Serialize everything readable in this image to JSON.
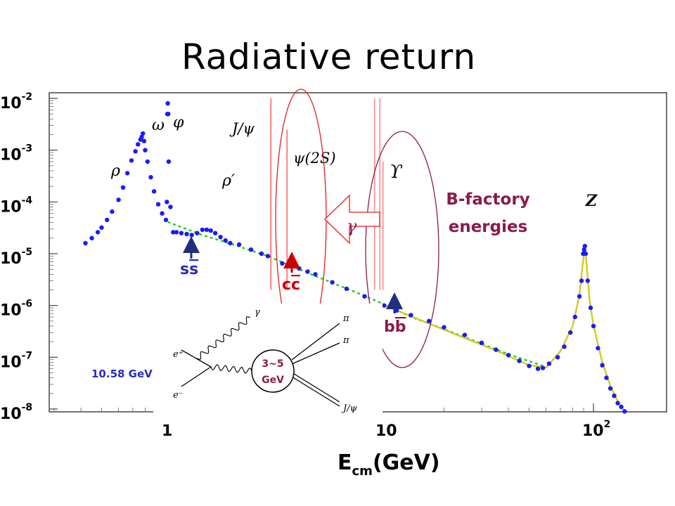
{
  "slide_title": "Radiative return",
  "x_axis_label": {
    "main": "E",
    "sub": "cm",
    "rest": "(GeV)"
  },
  "resonances": {
    "rho": "ρ",
    "omega": "ω",
    "phi": "φ",
    "rho_prime": "ρ′",
    "jpsi": "J/ψ",
    "psi2s": "ψ(2S)",
    "upsilon": "ϒ",
    "z": "Z"
  },
  "annotations": {
    "bfactory_line1": "B-factory",
    "bfactory_line2": "energies",
    "gamma_arrow": "γ",
    "ecm_box": "10.58 GeV",
    "hadron_mass_line1": "3~5",
    "hadron_mass_line2": "GeV"
  },
  "quark_labels": {
    "ss": {
      "first": "s",
      "second": "s"
    },
    "cc": {
      "first": "c",
      "second": "c"
    },
    "bb": {
      "first": "b",
      "second": "b"
    }
  },
  "feynman": {
    "e_plus": "e⁺",
    "e_minus": "e⁻",
    "gamma": "γ",
    "pi1": "π",
    "pi2": "π",
    "jpsi": "J/ψ"
  },
  "colors": {
    "data_blue": "#1a1aff",
    "fit_green": "#22cc22",
    "fit_yellow": "#d6c81e",
    "annot_purple": "#8b1a4a",
    "quark_blue": "#2a2ac0",
    "cc_red": "#cc0000",
    "ellipse_red": "#e02020",
    "ellipse_purple": "#8b1a4a",
    "arrow_navy": "#1f2f80"
  },
  "chart_data": {
    "type": "scatter",
    "x_scale": "log",
    "y_scale": "log",
    "xlim": [
      0.3,
      150
    ],
    "ylim": [
      1e-08,
      0.01
    ],
    "x_ticks": [
      {
        "value": 1,
        "base": "1",
        "exp": ""
      },
      {
        "value": 10,
        "base": "10",
        "exp": ""
      },
      {
        "value": 100,
        "base": "10",
        "exp": "2"
      }
    ],
    "y_ticks": [
      {
        "value": 0.01,
        "base": "10",
        "exp": "-2"
      },
      {
        "value": 0.001,
        "base": "10",
        "exp": "-3"
      },
      {
        "value": 0.0001,
        "base": "10",
        "exp": "-4"
      },
      {
        "value": 1e-05,
        "base": "10",
        "exp": "-5"
      },
      {
        "value": 1e-06,
        "base": "10",
        "exp": "-6"
      },
      {
        "value": 1e-07,
        "base": "10",
        "exp": "-7"
      },
      {
        "value": 1e-08,
        "base": "10",
        "exp": "-8"
      }
    ],
    "series": [
      {
        "color": "#1a1aff",
        "points": [
          [
            0.42,
            1.6e-05
          ],
          [
            0.45,
            2e-05
          ],
          [
            0.48,
            2.6e-05
          ],
          [
            0.5,
            3.2e-05
          ],
          [
            0.53,
            4.5e-05
          ],
          [
            0.56,
            6.5e-05
          ],
          [
            0.6,
            0.00011
          ],
          [
            0.63,
            0.00019
          ],
          [
            0.66,
            0.00036
          ],
          [
            0.69,
            0.00063
          ],
          [
            0.72,
            0.00095
          ],
          [
            0.74,
            0.0013
          ],
          [
            0.76,
            0.0016
          ],
          [
            0.77,
            0.0018
          ],
          [
            0.78,
            0.0021
          ],
          [
            0.79,
            0.0015
          ],
          [
            0.8,
            0.001
          ],
          [
            0.82,
            0.0006
          ],
          [
            0.85,
            0.0003
          ],
          [
            0.88,
            0.00016
          ],
          [
            0.92,
            9e-05
          ],
          [
            0.96,
            6e-05
          ],
          [
            1.0,
            4.5e-05
          ],
          [
            1.01,
            0.0001
          ],
          [
            1.015,
            0.005
          ],
          [
            1.02,
            0.008
          ],
          [
            1.025,
            0.005
          ],
          [
            1.03,
            0.0006
          ],
          [
            1.05,
            8e-05
          ],
          [
            1.08,
            2.6e-05
          ],
          [
            1.12,
            2.6e-05
          ],
          [
            1.18,
            2.5e-05
          ],
          [
            1.25,
            2.4e-05
          ],
          [
            1.32,
            2.3e-05
          ],
          [
            1.4,
            2.5e-05
          ],
          [
            1.48,
            2.9e-05
          ],
          [
            1.55,
            2.9e-05
          ],
          [
            1.62,
            2.8e-05
          ],
          [
            1.7,
            2.5e-05
          ],
          [
            1.8,
            2.1e-05
          ],
          [
            1.9,
            1.8e-05
          ],
          [
            2.0,
            1.6e-05
          ],
          [
            2.2,
            1.5e-05
          ],
          [
            2.5,
            1.2e-05
          ],
          [
            2.8,
            1e-05
          ],
          [
            3.0,
            9e-06
          ],
          [
            3.5,
            6.5e-06
          ],
          [
            3.9,
            6e-06
          ],
          [
            4.2,
            5.2e-06
          ],
          [
            4.6,
            4.5e-06
          ],
          [
            5.0,
            4e-06
          ],
          [
            6.0,
            2.8e-06
          ],
          [
            7.0,
            2.1e-06
          ],
          [
            8.5,
            1.5e-06
          ],
          [
            10.5,
            1e-06
          ],
          [
            12,
            8e-07
          ],
          [
            14,
            6.5e-07
          ],
          [
            17,
            5e-07
          ],
          [
            20,
            3.8e-07
          ],
          [
            25,
            2.7e-07
          ],
          [
            30,
            1.9e-07
          ],
          [
            35,
            1.4e-07
          ],
          [
            40,
            1.1e-07
          ],
          [
            45,
            8.5e-08
          ],
          [
            50,
            6.8e-08
          ],
          [
            55,
            6e-08
          ],
          [
            58,
            6.2e-08
          ],
          [
            62,
            7.5e-08
          ],
          [
            68,
            1e-07
          ],
          [
            73,
            1.6e-07
          ],
          [
            78,
            3e-07
          ],
          [
            82,
            6e-07
          ],
          [
            86,
            1.5e-06
          ],
          [
            88,
            3e-06
          ],
          [
            89.5,
            1e-05
          ],
          [
            90.5,
            1.2e-05
          ],
          [
            91.2,
            1.4e-05
          ],
          [
            92,
            1e-05
          ],
          [
            94,
            3e-06
          ],
          [
            97,
            9e-07
          ],
          [
            100,
            4e-07
          ],
          [
            105,
            1.5e-07
          ],
          [
            110,
            7e-08
          ],
          [
            115,
            4e-08
          ],
          [
            120,
            2.5e-08
          ],
          [
            125,
            1.8e-08
          ],
          [
            130,
            1.3e-08
          ],
          [
            135,
            1.1e-08
          ],
          [
            140,
            9e-09
          ]
        ]
      }
    ],
    "fit_curves": [
      {
        "color": "#22cc22",
        "dashed": true,
        "points": [
          [
            1.02,
            4.1e-05
          ],
          [
            1.5,
            2.25e-05
          ],
          [
            2.0,
            1.57e-05
          ],
          [
            3.0,
            9e-06
          ],
          [
            5.0,
            3.7e-06
          ],
          [
            8.0,
            1.7e-06
          ],
          [
            10,
            1.15e-06
          ],
          [
            14,
            6e-07
          ],
          [
            20,
            3.5e-07
          ],
          [
            40,
            1.15e-07
          ],
          [
            60,
            6.5e-08
          ]
        ]
      },
      {
        "color": "#d6c81e",
        "dashed": false,
        "points": [
          [
            10,
            1.1e-06
          ],
          [
            20,
            3.4e-07
          ],
          [
            35,
            1.35e-07
          ],
          [
            50,
            7e-08
          ],
          [
            60,
            6.3e-08
          ],
          [
            70,
            1.3e-07
          ],
          [
            80,
            4e-07
          ],
          [
            86,
            1.6e-06
          ],
          [
            89,
            6e-06
          ],
          [
            91.2,
            1.35e-05
          ],
          [
            93,
            6e-06
          ],
          [
            96,
            1.2e-06
          ],
          [
            100,
            4.2e-07
          ],
          [
            110,
            8e-08
          ],
          [
            120,
            2.8e-08
          ],
          [
            130,
            1.4e-08
          ],
          [
            140,
            9e-09
          ]
        ]
      }
    ],
    "spikes": [
      {
        "x": 3.097,
        "y_top": 0.01,
        "color": "#ff6666"
      },
      {
        "x": 3.686,
        "y_top": 0.0025,
        "color": "#ff6666"
      },
      {
        "x": 9.46,
        "y_top": 0.01,
        "color": "#ff8888"
      },
      {
        "x": 10.02,
        "y_top": 0.01,
        "color": "#ff8888"
      },
      {
        "x": 10.36,
        "y_top": 0.0006,
        "color": "#ff8888"
      }
    ]
  }
}
